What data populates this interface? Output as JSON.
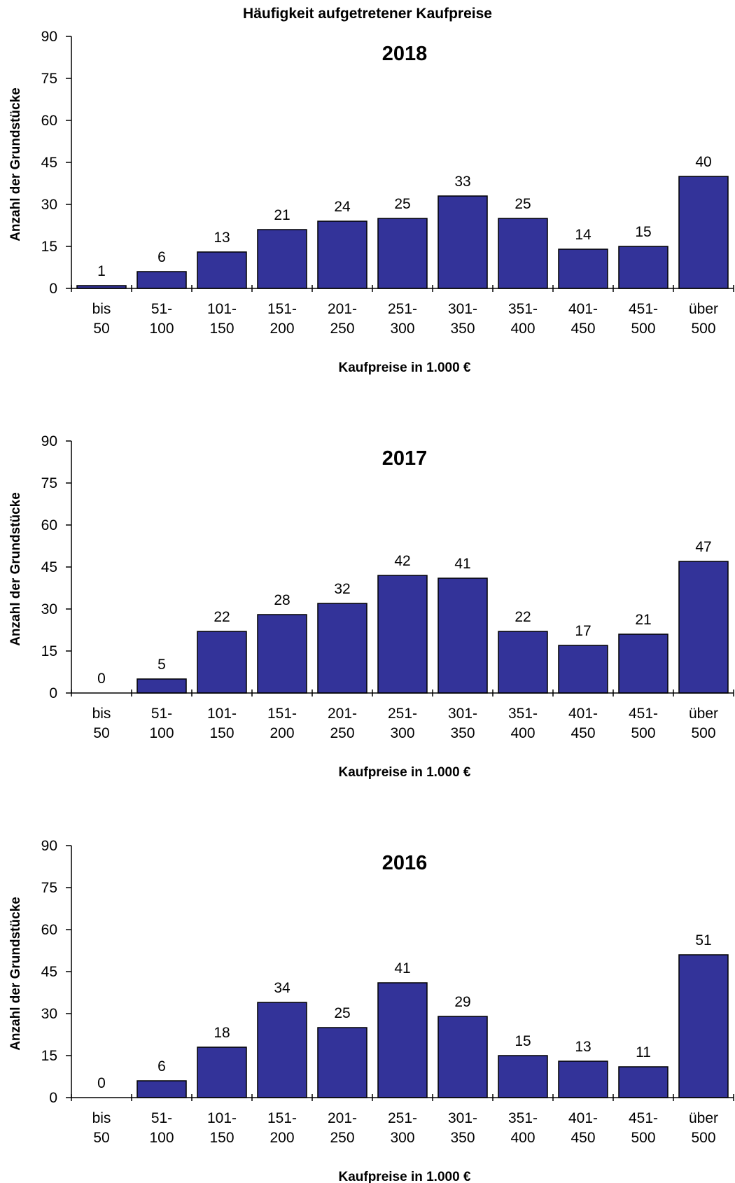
{
  "title": "Häufigkeit aufgetretener Kaufpreise",
  "colors": {
    "bar": "#333399",
    "bar_outline": "#000000",
    "axis": "#000000"
  },
  "chart_data": [
    {
      "type": "bar",
      "title": "2018",
      "xlabel": "Kaufpreise in 1.000 €",
      "ylabel": "Anzahl der Grundstücke",
      "ylim": [
        0,
        90
      ],
      "yticks": [
        0,
        15,
        30,
        45,
        60,
        75,
        90
      ],
      "categories": [
        [
          "bis",
          "50"
        ],
        [
          "51-",
          "100"
        ],
        [
          "101-",
          "150"
        ],
        [
          "151-",
          "200"
        ],
        [
          "201-",
          "250"
        ],
        [
          "251-",
          "300"
        ],
        [
          "301-",
          "350"
        ],
        [
          "351-",
          "400"
        ],
        [
          "401-",
          "450"
        ],
        [
          "451-",
          "500"
        ],
        [
          "über",
          "500"
        ]
      ],
      "values": [
        1,
        6,
        13,
        21,
        24,
        25,
        33,
        25,
        14,
        15,
        40
      ],
      "grid": false,
      "legend": "none"
    },
    {
      "type": "bar",
      "title": "2017",
      "xlabel": "Kaufpreise in 1.000 €",
      "ylabel": "Anzahl der Grundstücke",
      "ylim": [
        0,
        90
      ],
      "yticks": [
        0,
        15,
        30,
        45,
        60,
        75,
        90
      ],
      "categories": [
        [
          "bis",
          "50"
        ],
        [
          "51-",
          "100"
        ],
        [
          "101-",
          "150"
        ],
        [
          "151-",
          "200"
        ],
        [
          "201-",
          "250"
        ],
        [
          "251-",
          "300"
        ],
        [
          "301-",
          "350"
        ],
        [
          "351-",
          "400"
        ],
        [
          "401-",
          "450"
        ],
        [
          "451-",
          "500"
        ],
        [
          "über",
          "500"
        ]
      ],
      "values": [
        0,
        5,
        22,
        28,
        32,
        42,
        41,
        22,
        17,
        21,
        47
      ],
      "grid": false,
      "legend": "none"
    },
    {
      "type": "bar",
      "title": "2016",
      "xlabel": "Kaufpreise in 1.000 €",
      "ylabel": "Anzahl der Grundstücke",
      "ylim": [
        0,
        90
      ],
      "yticks": [
        0,
        15,
        30,
        45,
        60,
        75,
        90
      ],
      "categories": [
        [
          "bis",
          "50"
        ],
        [
          "51-",
          "100"
        ],
        [
          "101-",
          "150"
        ],
        [
          "151-",
          "200"
        ],
        [
          "201-",
          "250"
        ],
        [
          "251-",
          "300"
        ],
        [
          "301-",
          "350"
        ],
        [
          "351-",
          "400"
        ],
        [
          "401-",
          "450"
        ],
        [
          "451-",
          "500"
        ],
        [
          "über",
          "500"
        ]
      ],
      "values": [
        0,
        6,
        18,
        34,
        25,
        41,
        29,
        15,
        13,
        11,
        51
      ],
      "grid": false,
      "legend": "none"
    }
  ]
}
